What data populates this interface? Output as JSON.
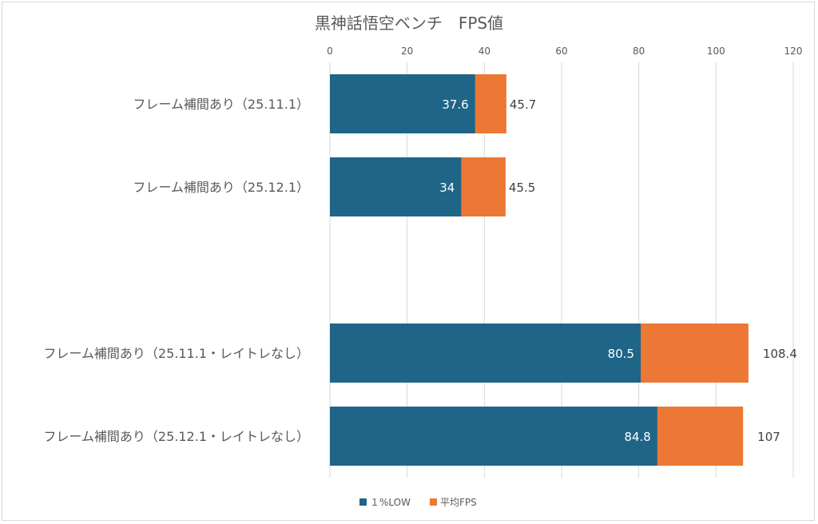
{
  "chart_data": {
    "type": "bar",
    "orientation": "horizontal",
    "stacked": false,
    "overlapped": true,
    "title": "黒神話悟空ベンチ　FPS値",
    "categories": [
      "フレーム補間あり（25.11.1）",
      "フレーム補間あり（25.12.1）",
      "",
      "フレーム補間あり（25.11.1・レイトレなし）",
      "フレーム補間あり（25.12.1・レイトレなし）"
    ],
    "series": [
      {
        "name": "１%LOW",
        "color": "#1f6587",
        "values": [
          37.6,
          34,
          null,
          80.5,
          84.8
        ]
      },
      {
        "name": "平均FPS",
        "color": "#ed7734",
        "values": [
          45.7,
          45.5,
          null,
          108.4,
          107
        ]
      }
    ],
    "x_ticks": [
      0,
      20,
      40,
      60,
      80,
      100,
      120
    ],
    "xlim": [
      0,
      120
    ],
    "xaxis_position": "top",
    "grid": true,
    "legend_position": "bottom"
  }
}
